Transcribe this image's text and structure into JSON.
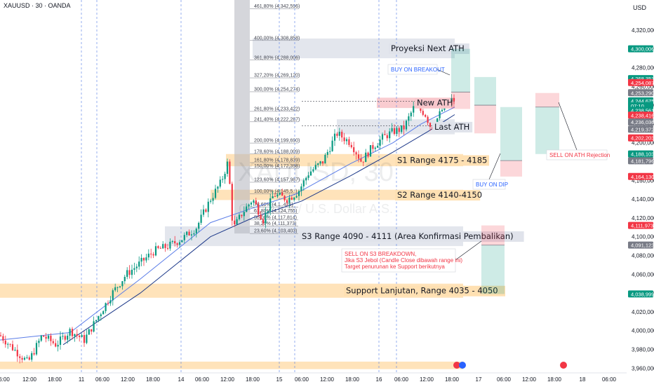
{
  "header": {
    "symbol": "XAUUSD · 30 · OANDA",
    "currency": "USD"
  },
  "watermark": {
    "ticker": "XAUUSD, 30",
    "description": "Gold Spot / U.S. Dollar A.S."
  },
  "chart_data": {
    "type": "candlestick",
    "price_range": [
      3955,
      4352
    ],
    "time_range": [
      0,
      880
    ],
    "candles_anchor": [
      [
        0,
        3995
      ],
      [
        20,
        3980
      ],
      [
        40,
        3966
      ],
      [
        60,
        3995
      ],
      [
        80,
        3985
      ],
      [
        100,
        4000
      ],
      [
        120,
        3990
      ],
      [
        140,
        4015
      ],
      [
        160,
        4040
      ],
      [
        180,
        4060
      ],
      [
        200,
        4072
      ],
      [
        220,
        4085
      ],
      [
        240,
        4090
      ],
      [
        260,
        4098
      ],
      [
        280,
        4110
      ],
      [
        300,
        4140
      ],
      [
        315,
        4158
      ],
      [
        325,
        4180
      ],
      [
        332,
        4108
      ],
      [
        345,
        4125
      ],
      [
        360,
        4140
      ],
      [
        375,
        4118
      ],
      [
        390,
        4145
      ],
      [
        410,
        4140
      ],
      [
        425,
        4148
      ],
      [
        440,
        4168
      ],
      [
        460,
        4180
      ],
      [
        480,
        4210
      ],
      [
        500,
        4200
      ],
      [
        515,
        4180
      ],
      [
        530,
        4195
      ],
      [
        545,
        4205
      ],
      [
        560,
        4212
      ],
      [
        575,
        4215
      ],
      [
        590,
        4238
      ],
      [
        605,
        4232
      ],
      [
        615,
        4215
      ],
      [
        630,
        4235
      ],
      [
        645,
        4246
      ]
    ],
    "ma_fast": [
      [
        0,
        3990
      ],
      [
        100,
        3998
      ],
      [
        200,
        4055
      ],
      [
        300,
        4115
      ],
      [
        350,
        4128
      ],
      [
        420,
        4145
      ],
      [
        500,
        4178
      ],
      [
        560,
        4200
      ],
      [
        600,
        4220
      ],
      [
        648,
        4238
      ]
    ],
    "ma_slow": [
      [
        90,
        3985
      ],
      [
        200,
        4040
      ],
      [
        300,
        4100
      ],
      [
        360,
        4120
      ],
      [
        430,
        4138
      ],
      [
        500,
        4165
      ],
      [
        560,
        4190
      ],
      [
        610,
        4212
      ],
      [
        648,
        4230
      ]
    ],
    "x_ticks": [
      {
        "x": 6,
        "label": "6:00"
      },
      {
        "x": 42,
        "label": "12:00"
      },
      {
        "x": 78,
        "label": "18:00"
      },
      {
        "x": 116,
        "label": "11"
      },
      {
        "x": 146,
        "label": "06:00"
      },
      {
        "x": 182,
        "label": "12:00"
      },
      {
        "x": 218,
        "label": "18:00"
      },
      {
        "x": 258,
        "label": "14"
      },
      {
        "x": 288,
        "label": "06:00"
      },
      {
        "x": 324,
        "label": "12:00"
      },
      {
        "x": 360,
        "label": "18:00"
      },
      {
        "x": 398,
        "label": "15"
      },
      {
        "x": 430,
        "label": "06:00"
      },
      {
        "x": 466,
        "label": "12:00"
      },
      {
        "x": 502,
        "label": "18:00"
      },
      {
        "x": 540,
        "label": "16"
      },
      {
        "x": 572,
        "label": "06:00"
      },
      {
        "x": 608,
        "label": "12:00"
      },
      {
        "x": 644,
        "label": "18:00"
      },
      {
        "x": 682,
        "label": "17"
      },
      {
        "x": 718,
        "label": "06:00"
      },
      {
        "x": 754,
        "label": "12:00"
      },
      {
        "x": 790,
        "label": "18:00"
      },
      {
        "x": 830,
        "label": "18"
      },
      {
        "x": 868,
        "label": "06:00"
      }
    ],
    "day_separators": [
      116,
      258,
      398,
      540
    ],
    "session_lines": [
      138,
      420,
      565
    ],
    "y_ticks": [
      "4,320,000",
      "4,300,000",
      "4,280,000",
      "4,260,000",
      "4,240,000",
      "4,220,000",
      "4,200,000",
      "4,180,000",
      "4,160,000",
      "4,140,000",
      "4,120,000",
      "4,100,000",
      "4,080,000",
      "4,060,000",
      "4,040,000",
      "4,020,000",
      "4,000,000",
      "3,980,000",
      "3,960,000"
    ],
    "price_tags": [
      {
        "price": 4300.006,
        "label": "4,300,006",
        "color": "#089981"
      },
      {
        "price": 4268.353,
        "label": "4,268,353",
        "color": "#089981"
      },
      {
        "price": 4264.087,
        "label": "4,254,087",
        "color": "#f23645"
      },
      {
        "price": 4253.29,
        "label": "4,253,290",
        "color": "#787b86"
      },
      {
        "price": 4244.675,
        "label": "4,244,675",
        "color": "#089981"
      },
      {
        "price": 4239.5,
        "label": "07:10",
        "color": "#089981"
      },
      {
        "price": 4234.561,
        "label": "4,238,561",
        "color": "#089981"
      },
      {
        "price": 4229.416,
        "label": "4,238,416",
        "color": "#f23645"
      },
      {
        "price": 4222.036,
        "label": "4,236,036",
        "color": "#787b86"
      },
      {
        "price": 4214.372,
        "label": "4,219,372",
        "color": "#787b86"
      },
      {
        "price": 4205.203,
        "label": "4,202,203",
        "color": "#f23645"
      },
      {
        "price": 4188.103,
        "label": "4,188,103",
        "color": "#089981"
      },
      {
        "price": 4180.796,
        "label": "4,181,796",
        "color": "#787b86"
      },
      {
        "price": 4164.13,
        "label": "4,164,130",
        "color": "#f23645"
      },
      {
        "price": 4111.973,
        "label": "4,111,973",
        "color": "#f23645"
      },
      {
        "price": 4091.123,
        "label": "4,091,123",
        "color": "#787b86"
      },
      {
        "price": 4038.999,
        "label": "4,038,999",
        "color": "#089981"
      }
    ],
    "fib_levels": [
      {
        "price": 4342.596,
        "label": "461,80% (4,342,596)"
      },
      {
        "price": 4308.858,
        "label": "400,00% (4,308,858)"
      },
      {
        "price": 4288.006,
        "label": "361,80% (4,288,006)"
      },
      {
        "price": 4269.12,
        "label": "327,20% (4,269,120)"
      },
      {
        "price": 4254.274,
        "label": "300,00% (4,254,274)"
      },
      {
        "price": 4233.422,
        "label": "261,80% (4,233,422)"
      },
      {
        "price": 4222.287,
        "label": "241,40% (4,222,287)"
      },
      {
        "price": 4199.69,
        "label": "200,00% (4,199,690)"
      },
      {
        "price": 4188.009,
        "label": "178,60% (4,188,009)"
      },
      {
        "price": 4178.839,
        "label": "161,80% (4,178,839)"
      },
      {
        "price": 4172.398,
        "label": "150,00% (4,172,398)"
      },
      {
        "price": 4157.987,
        "label": "123,60% (4,157,987)"
      },
      {
        "price": 4145.5,
        "label": "100,00% (4,145,5..)"
      },
      {
        "price": 4131.5,
        "label": "78,60% (4,1..425)"
      },
      {
        "price": 4124.755,
        "label": "61,80% (4,124,755)"
      },
      {
        "price": 4117.814,
        "label": "50,00% (4,117,814)"
      },
      {
        "price": 4111.373,
        "label": "38,20% (4,111,373)"
      },
      {
        "price": 4103.403,
        "label": "23,60% (4,103,403)"
      }
    ],
    "zones": [
      {
        "name": "zone-proyeksi",
        "x1": 360,
        "x2": 648,
        "top": 4311,
        "bottom": 4290,
        "fill": "#e0e3eb",
        "label": "Proyeksi Next ATH",
        "label_x": 557
      },
      {
        "name": "zone-new-ath",
        "x1": 537,
        "x2": 648,
        "top": 4248,
        "bottom": 4237,
        "fill": "#f8c6cb",
        "label": "New ATH",
        "label_x": 594
      },
      {
        "name": "zone-last-ath",
        "x1": 480,
        "x2": 648,
        "top": 4225,
        "bottom": 4209,
        "fill": "#e0e3eb",
        "label": "Last ATH",
        "label_x": 619
      },
      {
        "name": "zone-s1",
        "x1": 322,
        "x2": 660,
        "top": 4188,
        "bottom": 4175,
        "fill": "#ffe0b2",
        "label": "S1 Range 4175 - 4185",
        "label_x": 566
      },
      {
        "name": "zone-s2",
        "x1": 300,
        "x2": 660,
        "top": 4150,
        "bottom": 4139,
        "fill": "#ffe0b2",
        "label": "S2 Range 4140-4150",
        "label_x": 566
      },
      {
        "name": "zone-s3",
        "x1": 235,
        "x2": 660,
        "top": 4111,
        "bottom": 4090,
        "fill": "#e0e3eb",
        "label": "S3 Range 4090 - 4111 (Area Konfirmasi Pembalikan)",
        "label_x": 430
      },
      {
        "name": "zone-support",
        "x1": 0,
        "x2": 660,
        "top": 4050,
        "bottom": 4035,
        "fill": "#ffe0b2",
        "label": "Support Lanjutan, Range 4035 - 4050",
        "label_x": 493
      },
      {
        "name": "zone-bottom",
        "x1": 0,
        "x2": 660,
        "top": 3967,
        "bottom": 3959,
        "fill": "#ffe0b2",
        "label": "",
        "label_x": 0
      }
    ],
    "positions": [
      {
        "name": "buy-on-breakout",
        "x1": 643,
        "x2": 670,
        "entry": 4254,
        "target": 4300,
        "stop": 4236,
        "type": "long"
      },
      {
        "name": "position-2",
        "x1": 676,
        "x2": 707,
        "entry": 4240,
        "target": 4270,
        "stop": 4210,
        "type": "long"
      },
      {
        "name": "buy-on-dip",
        "x1": 713,
        "x2": 744,
        "entry": 4181,
        "target": 4238,
        "stop": 4164,
        "type": "long"
      },
      {
        "name": "sell-on-ath-rejection",
        "x1": 763,
        "x2": 797,
        "entry": 4238,
        "target": 4188,
        "stop": 4253,
        "type": "short"
      },
      {
        "name": "sell-on-s3-breakdown",
        "x1": 686,
        "x2": 719,
        "entry": 4091,
        "target": 4039,
        "stop": 4112,
        "type": "short"
      }
    ],
    "annotations": {
      "buy_breakout": "BUY ON BREAKOUT",
      "buy_dip": "BUY ON DIP",
      "sell_ath": "SELL ON ATH Rejection",
      "sell_s3_line1": "SELL ON S3 BREAKDOWN,",
      "sell_s3_line2": "Jika  S3 Jebol (Candle Close dibawah range ini)",
      "sell_s3_line3": "Target penurunan ke Support berikutnya"
    }
  },
  "colors": {
    "up": "#089981",
    "down": "#f23645",
    "ma_fast": "#5b7de8",
    "ma_slow": "#1e3a8a",
    "grid": "#f0f3fa"
  }
}
